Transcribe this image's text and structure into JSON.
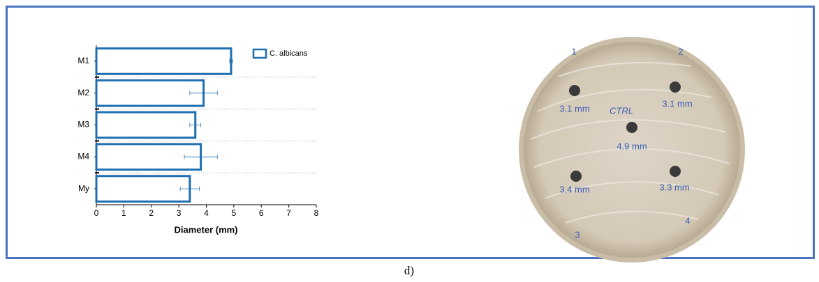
{
  "chart_data": {
    "type": "bar",
    "orientation": "horizontal",
    "categories": [
      "M1",
      "M2",
      "M3",
      "M4",
      "My"
    ],
    "series": [
      {
        "name": "C. albicans",
        "color": "#1f6fb0",
        "values": [
          4.9,
          3.9,
          3.6,
          3.8,
          3.4
        ],
        "errors": [
          0.05,
          0.5,
          0.2,
          0.6,
          0.35
        ]
      }
    ],
    "xlabel": "Diameter (mm)",
    "xlim": [
      0,
      8
    ],
    "xticks": [
      0,
      1,
      2,
      3,
      4,
      5,
      6,
      7,
      8
    ],
    "legend": "upper right",
    "grid": true
  },
  "photo": {
    "labels": [
      "3.1 mm",
      "3.1 mm",
      "4.9 mm",
      "3.4 mm",
      "3.3 mm"
    ],
    "control": "CTRL",
    "wells": [
      "1",
      "2",
      "3",
      "4"
    ]
  },
  "caption": "d)"
}
